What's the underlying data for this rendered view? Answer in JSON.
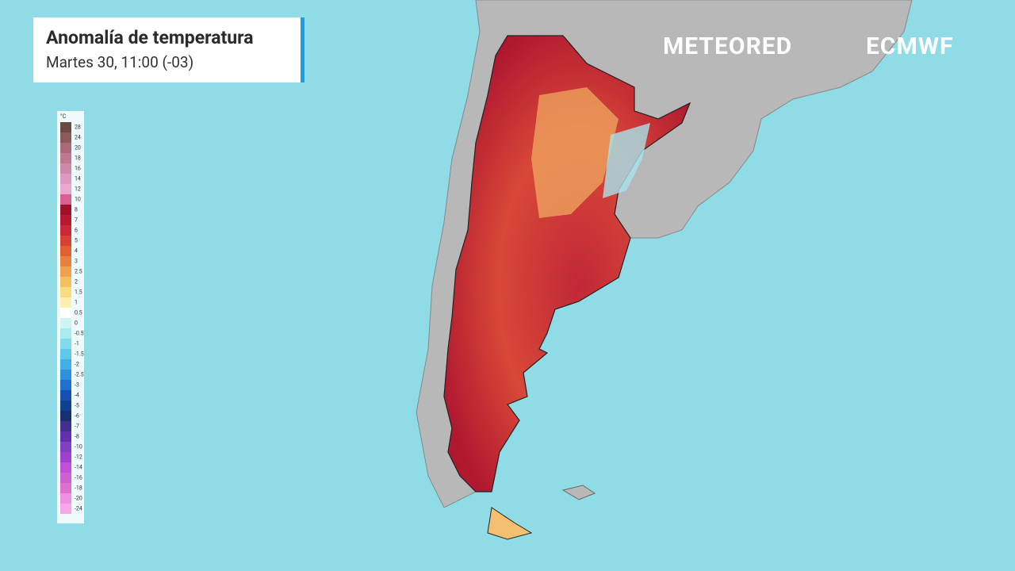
{
  "header": {
    "title": "Anomalía de temperatura",
    "subtitle": "Martes 30, 11:00 (-03)"
  },
  "logos": {
    "meteored": "METEORED",
    "ecmwf": "ECMWF"
  },
  "legend": {
    "unit": "°C",
    "labels": [
      "28",
      "24",
      "20",
      "18",
      "16",
      "14",
      "12",
      "10",
      "8",
      "7",
      "6",
      "5",
      "4",
      "3",
      "2.5",
      "2",
      "1.5",
      "1",
      "0.5",
      "0",
      "-0.5",
      "-1",
      "-1.5",
      "-2",
      "-2.5",
      "-3",
      "-4",
      "-5",
      "-6",
      "-7",
      "-8",
      "-10",
      "-12",
      "-14",
      "-16",
      "-18",
      "-20",
      "-24"
    ],
    "colors": [
      "#6b4a44",
      "#8a5a5a",
      "#a86a78",
      "#c07890",
      "#d088a8",
      "#e098c0",
      "#e8a8d0",
      "#d86090",
      "#a0102a",
      "#b81830",
      "#c82838",
      "#d84030",
      "#e06030",
      "#e88040",
      "#f0a050",
      "#f5c060",
      "#f8dc80",
      "#fcefb0",
      "#ffffff",
      "#d0f4f4",
      "#a8ecf0",
      "#80dcec",
      "#60c8ec",
      "#40b0e8",
      "#3090e0",
      "#2070d0",
      "#1850b0",
      "#104090",
      "#183070",
      "#403090",
      "#6030b0",
      "#8040c0",
      "#a040d0",
      "#c050d8",
      "#d060d0",
      "#e070d0",
      "#f090e0",
      "#f4a8e8"
    ]
  }
}
